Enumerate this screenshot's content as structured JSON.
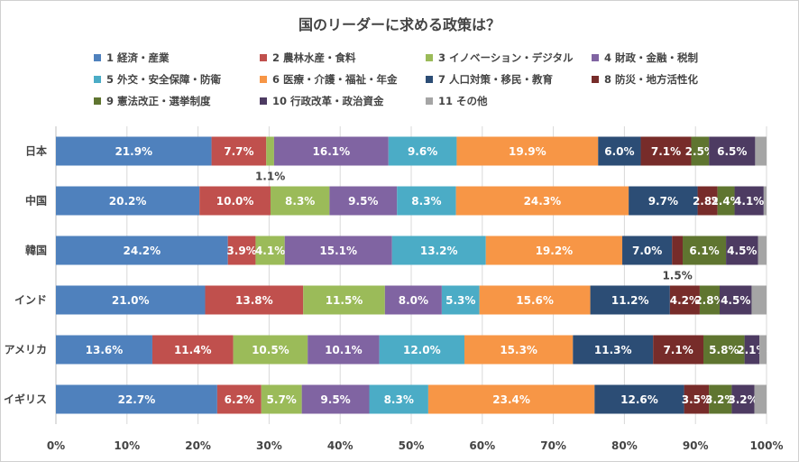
{
  "chart_data": {
    "type": "bar",
    "orientation": "horizontal",
    "stacked": "percent",
    "title": "国のリーダーに求める政策は？",
    "categories": [
      "日本",
      "中国",
      "韓国",
      "インド",
      "アメリカ",
      "イギリス"
    ],
    "xlim": [
      0,
      100
    ],
    "x_ticks": [
      "0%",
      "10%",
      "20%",
      "30%",
      "40%",
      "50%",
      "60%",
      "70%",
      "80%",
      "90%",
      "100%"
    ],
    "grid": true,
    "legend_position": "top",
    "series": [
      {
        "name": "1 経済・産業",
        "color": "#4f81bd",
        "values": [
          21.9,
          20.2,
          24.2,
          21.0,
          13.6,
          22.7
        ]
      },
      {
        "name": "2 農林水産・食料",
        "color": "#c0504d",
        "values": [
          7.7,
          10.0,
          3.9,
          13.8,
          11.4,
          6.2
        ]
      },
      {
        "name": "3 イノベーション・デジタル",
        "color": "#9bbb59",
        "values": [
          1.1,
          8.3,
          4.1,
          11.5,
          10.5,
          5.7
        ]
      },
      {
        "name": "4 財政・金融・税制",
        "color": "#8064a2",
        "values": [
          16.1,
          9.5,
          15.1,
          8.0,
          10.1,
          9.5
        ]
      },
      {
        "name": "5 外交・安全保障・防衛",
        "color": "#4bacc6",
        "values": [
          9.6,
          8.3,
          13.2,
          5.3,
          12.0,
          8.3
        ]
      },
      {
        "name": "6 医療・介護・福祉・年金",
        "color": "#f79646",
        "values": [
          19.9,
          24.3,
          19.2,
          15.6,
          15.3,
          23.4
        ]
      },
      {
        "name": "7 人口対策・移民・教育",
        "color": "#2c4d75",
        "values": [
          6.0,
          9.7,
          7.0,
          11.2,
          11.3,
          12.6
        ]
      },
      {
        "name": "8 防災・地方活性化",
        "color": "#772c2a",
        "values": [
          7.1,
          2.8,
          1.5,
          4.2,
          7.1,
          3.5
        ]
      },
      {
        "name": "9 憲法改正・選挙制度",
        "color": "#5f7530",
        "values": [
          2.5,
          2.4,
          6.1,
          2.8,
          5.8,
          3.2
        ]
      },
      {
        "name": "10 行政改革・政治資金",
        "color": "#4d3b62",
        "values": [
          6.5,
          4.1,
          4.5,
          4.5,
          2.1,
          3.2
        ]
      },
      {
        "name": "11 その他",
        "color": "#a5a5a5",
        "values": [
          1.6,
          0.4,
          1.2,
          2.1,
          1.0,
          1.7
        ]
      }
    ],
    "data_labels": [
      [
        "21.9%",
        "7.7%",
        "1.1%",
        "16.1%",
        "9.6%",
        "19.9%",
        "6.0%",
        "7.1%",
        "2.5%",
        "6.5%",
        ""
      ],
      [
        "20.2%",
        "10.0%",
        "8.3%",
        "9.5%",
        "8.3%",
        "24.3%",
        "9.7%",
        "2.8%",
        "2.4%",
        "4.1%",
        ""
      ],
      [
        "24.2%",
        "3.9%",
        "4.1%",
        "15.1%",
        "13.2%",
        "19.2%",
        "7.0%",
        "1.5%",
        "6.1%",
        "4.5%",
        ""
      ],
      [
        "21.0%",
        "13.8%",
        "11.5%",
        "8.0%",
        "5.3%",
        "15.6%",
        "11.2%",
        "4.2%",
        "2.8%",
        "4.5%",
        ""
      ],
      [
        "13.6%",
        "11.4%",
        "10.5%",
        "10.1%",
        "12.0%",
        "15.3%",
        "11.3%",
        "7.1%",
        "5.8%",
        "2.1%",
        ""
      ],
      [
        "22.7%",
        "6.2%",
        "5.7%",
        "9.5%",
        "8.3%",
        "23.4%",
        "12.6%",
        "3.5%",
        "3.2%",
        "3.2%",
        ""
      ]
    ]
  }
}
